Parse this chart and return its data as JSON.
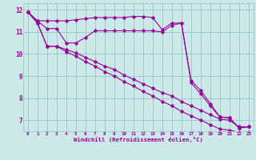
{
  "xlabel": "Windchill (Refroidissement éolien,°C)",
  "bg_color": "#cce8e8",
  "grid_color": "#99cccc",
  "line_color": "#990099",
  "xlim": [
    -0.5,
    23.5
  ],
  "ylim": [
    6.5,
    12.3
  ],
  "xticks": [
    0,
    1,
    2,
    3,
    4,
    5,
    6,
    7,
    8,
    9,
    10,
    11,
    12,
    13,
    14,
    15,
    16,
    17,
    18,
    19,
    20,
    21,
    22,
    23
  ],
  "yticks": [
    7,
    8,
    9,
    10,
    11,
    12
  ],
  "line1_x": [
    0,
    1,
    2,
    3,
    4,
    5,
    6,
    7,
    8,
    9,
    10,
    11,
    12,
    13,
    14,
    15,
    16,
    17,
    18,
    19,
    20,
    21,
    22,
    23
  ],
  "line1_y": [
    11.9,
    11.5,
    11.5,
    11.5,
    11.5,
    11.55,
    11.6,
    11.65,
    11.65,
    11.65,
    11.65,
    11.7,
    11.7,
    11.65,
    11.1,
    11.4,
    11.4,
    8.7,
    8.2,
    7.65,
    7.15,
    7.1,
    6.65,
    6.7
  ],
  "line2_x": [
    0,
    1,
    2,
    3,
    4,
    5,
    6,
    7,
    8,
    9,
    10,
    11,
    12,
    13,
    14,
    15,
    16,
    17,
    18,
    19,
    20,
    21,
    22,
    23
  ],
  "line2_y": [
    11.9,
    11.5,
    11.15,
    11.15,
    10.5,
    10.5,
    10.75,
    11.05,
    11.05,
    11.05,
    11.05,
    11.05,
    11.05,
    11.05,
    11.0,
    11.3,
    11.4,
    8.8,
    8.35,
    7.75,
    7.15,
    7.1,
    6.65,
    6.7
  ],
  "line3_x": [
    0,
    1,
    2,
    3,
    4,
    5,
    6,
    7,
    8,
    9,
    10,
    11,
    12,
    13,
    14,
    15,
    16,
    17,
    18,
    19,
    20,
    21,
    22,
    23
  ],
  "line3_y": [
    11.9,
    11.4,
    10.35,
    10.35,
    10.2,
    10.05,
    9.85,
    9.65,
    9.45,
    9.3,
    9.05,
    8.85,
    8.65,
    8.45,
    8.25,
    8.1,
    7.85,
    7.65,
    7.45,
    7.25,
    7.05,
    7.0,
    6.7,
    6.7
  ],
  "line4_x": [
    0,
    1,
    2,
    3,
    4,
    5,
    6,
    7,
    8,
    9,
    10,
    11,
    12,
    13,
    14,
    15,
    16,
    17,
    18,
    19,
    20,
    21,
    22,
    23
  ],
  "line4_y": [
    11.9,
    11.4,
    10.35,
    10.35,
    10.1,
    9.9,
    9.65,
    9.45,
    9.2,
    9.0,
    8.75,
    8.55,
    8.3,
    8.1,
    7.85,
    7.65,
    7.4,
    7.2,
    7.0,
    6.8,
    6.6,
    6.55,
    6.45,
    6.45
  ]
}
